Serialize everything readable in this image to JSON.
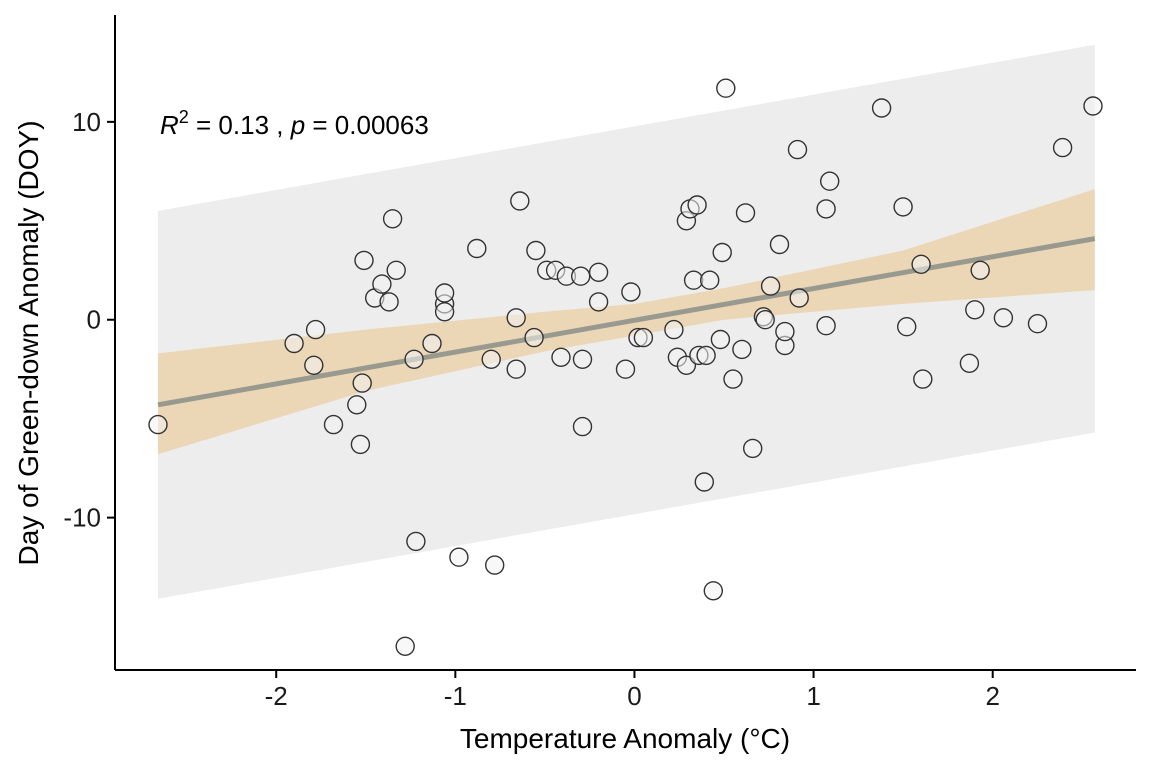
{
  "chart_data": {
    "type": "scatter",
    "title": "",
    "xlabel": "Temperature Anomaly (°C)",
    "ylabel": "Day of Green-down Anomaly (DOY)",
    "xlim": [
      -2.9,
      2.8
    ],
    "ylim": [
      -17.7,
      15.4
    ],
    "x_ticks": [
      -2,
      -1,
      0,
      1,
      2
    ],
    "y_ticks": [
      -10,
      0,
      10
    ],
    "x_tick_labels": [
      "-2",
      "-1",
      "0",
      "1",
      "2"
    ],
    "y_tick_labels": [
      "-10",
      "0",
      "10"
    ],
    "grid": false,
    "annotation": {
      "r2_symbol": "R",
      "r2_superscript": "2",
      "r2_value": " = 0.13 , ",
      "p_symbol": "p",
      "p_value": " = 0.00063"
    },
    "regression": {
      "x": [
        -2.66,
        2.57
      ],
      "y": [
        -4.3,
        4.1
      ]
    },
    "confidence_band": {
      "x": [
        -2.66,
        -1.5,
        -0.5,
        0.0,
        0.5,
        1.5,
        2.57
      ],
      "lower": [
        -6.8,
        -3.6,
        -1.6,
        -0.8,
        0.0,
        0.8,
        1.5
      ],
      "upper": [
        -1.7,
        -0.5,
        0.4,
        0.8,
        1.6,
        3.5,
        6.6
      ]
    },
    "prediction_band": {
      "x": [
        -2.66,
        2.57
      ],
      "lower": [
        -14.1,
        -5.7
      ],
      "upper": [
        5.5,
        13.9
      ]
    },
    "points": [
      [
        -2.66,
        -5.3
      ],
      [
        -1.9,
        -1.2
      ],
      [
        -1.78,
        -0.5
      ],
      [
        -1.79,
        -2.3
      ],
      [
        -1.68,
        -5.3
      ],
      [
        -1.55,
        -4.3
      ],
      [
        -1.53,
        -6.3
      ],
      [
        -1.52,
        -3.2
      ],
      [
        -1.51,
        3.0
      ],
      [
        -1.45,
        1.1
      ],
      [
        -1.41,
        1.8
      ],
      [
        -1.37,
        0.9
      ],
      [
        -1.35,
        5.1
      ],
      [
        -1.33,
        2.5
      ],
      [
        -1.28,
        -16.5
      ],
      [
        -1.22,
        -11.2
      ],
      [
        -1.23,
        -2.0
      ],
      [
        -1.13,
        -1.2
      ],
      [
        -1.06,
        0.8
      ],
      [
        -1.06,
        1.35
      ],
      [
        -1.06,
        0.4
      ],
      [
        -0.98,
        -12.0
      ],
      [
        -0.88,
        3.6
      ],
      [
        -0.8,
        -2.0
      ],
      [
        -0.78,
        -12.4
      ],
      [
        -0.66,
        0.1
      ],
      [
        -0.66,
        -2.5
      ],
      [
        -0.64,
        6.0
      ],
      [
        -0.56,
        -0.9
      ],
      [
        -0.55,
        3.5
      ],
      [
        -0.49,
        2.5
      ],
      [
        -0.44,
        2.5
      ],
      [
        -0.41,
        -1.9
      ],
      [
        -0.38,
        2.2
      ],
      [
        -0.3,
        2.2
      ],
      [
        -0.29,
        -2.0
      ],
      [
        -0.29,
        -5.4
      ],
      [
        -0.2,
        2.4
      ],
      [
        -0.2,
        0.9
      ],
      [
        -0.05,
        -2.5
      ],
      [
        -0.02,
        1.4
      ],
      [
        0.02,
        -0.9
      ],
      [
        0.05,
        -0.9
      ],
      [
        0.22,
        -0.5
      ],
      [
        0.24,
        -1.9
      ],
      [
        0.29,
        -2.3
      ],
      [
        0.29,
        5.0
      ],
      [
        0.31,
        5.6
      ],
      [
        0.33,
        2.0
      ],
      [
        0.35,
        5.8
      ],
      [
        0.36,
        -1.8
      ],
      [
        0.39,
        -8.2
      ],
      [
        0.4,
        -1.8
      ],
      [
        0.42,
        2.0
      ],
      [
        0.44,
        -13.7
      ],
      [
        0.48,
        -1.0
      ],
      [
        0.49,
        3.4
      ],
      [
        0.51,
        11.7
      ],
      [
        0.55,
        -3.0
      ],
      [
        0.6,
        -1.5
      ],
      [
        0.62,
        5.4
      ],
      [
        0.66,
        -6.5
      ],
      [
        0.72,
        0.15
      ],
      [
        0.73,
        0.0
      ],
      [
        0.76,
        1.7
      ],
      [
        0.81,
        3.8
      ],
      [
        0.84,
        -1.3
      ],
      [
        0.84,
        -0.6
      ],
      [
        0.91,
        8.6
      ],
      [
        0.92,
        1.1
      ],
      [
        1.07,
        5.6
      ],
      [
        1.07,
        -0.3
      ],
      [
        1.09,
        7.0
      ],
      [
        1.38,
        10.7
      ],
      [
        1.5,
        5.7
      ],
      [
        1.52,
        -0.35
      ],
      [
        1.6,
        2.8
      ],
      [
        1.61,
        -3.0
      ],
      [
        1.87,
        -2.2
      ],
      [
        1.9,
        0.5
      ],
      [
        1.93,
        2.5
      ],
      [
        2.06,
        0.1
      ],
      [
        2.25,
        -0.2
      ],
      [
        2.39,
        8.7
      ],
      [
        2.56,
        10.8
      ]
    ],
    "colors": {
      "point_fill": "#f2f2f2",
      "point_stroke": "#333333",
      "line": "#999a8f",
      "confidence_band": "#ebd7b6",
      "prediction_band": "#ededed",
      "axis": "#000000"
    }
  }
}
